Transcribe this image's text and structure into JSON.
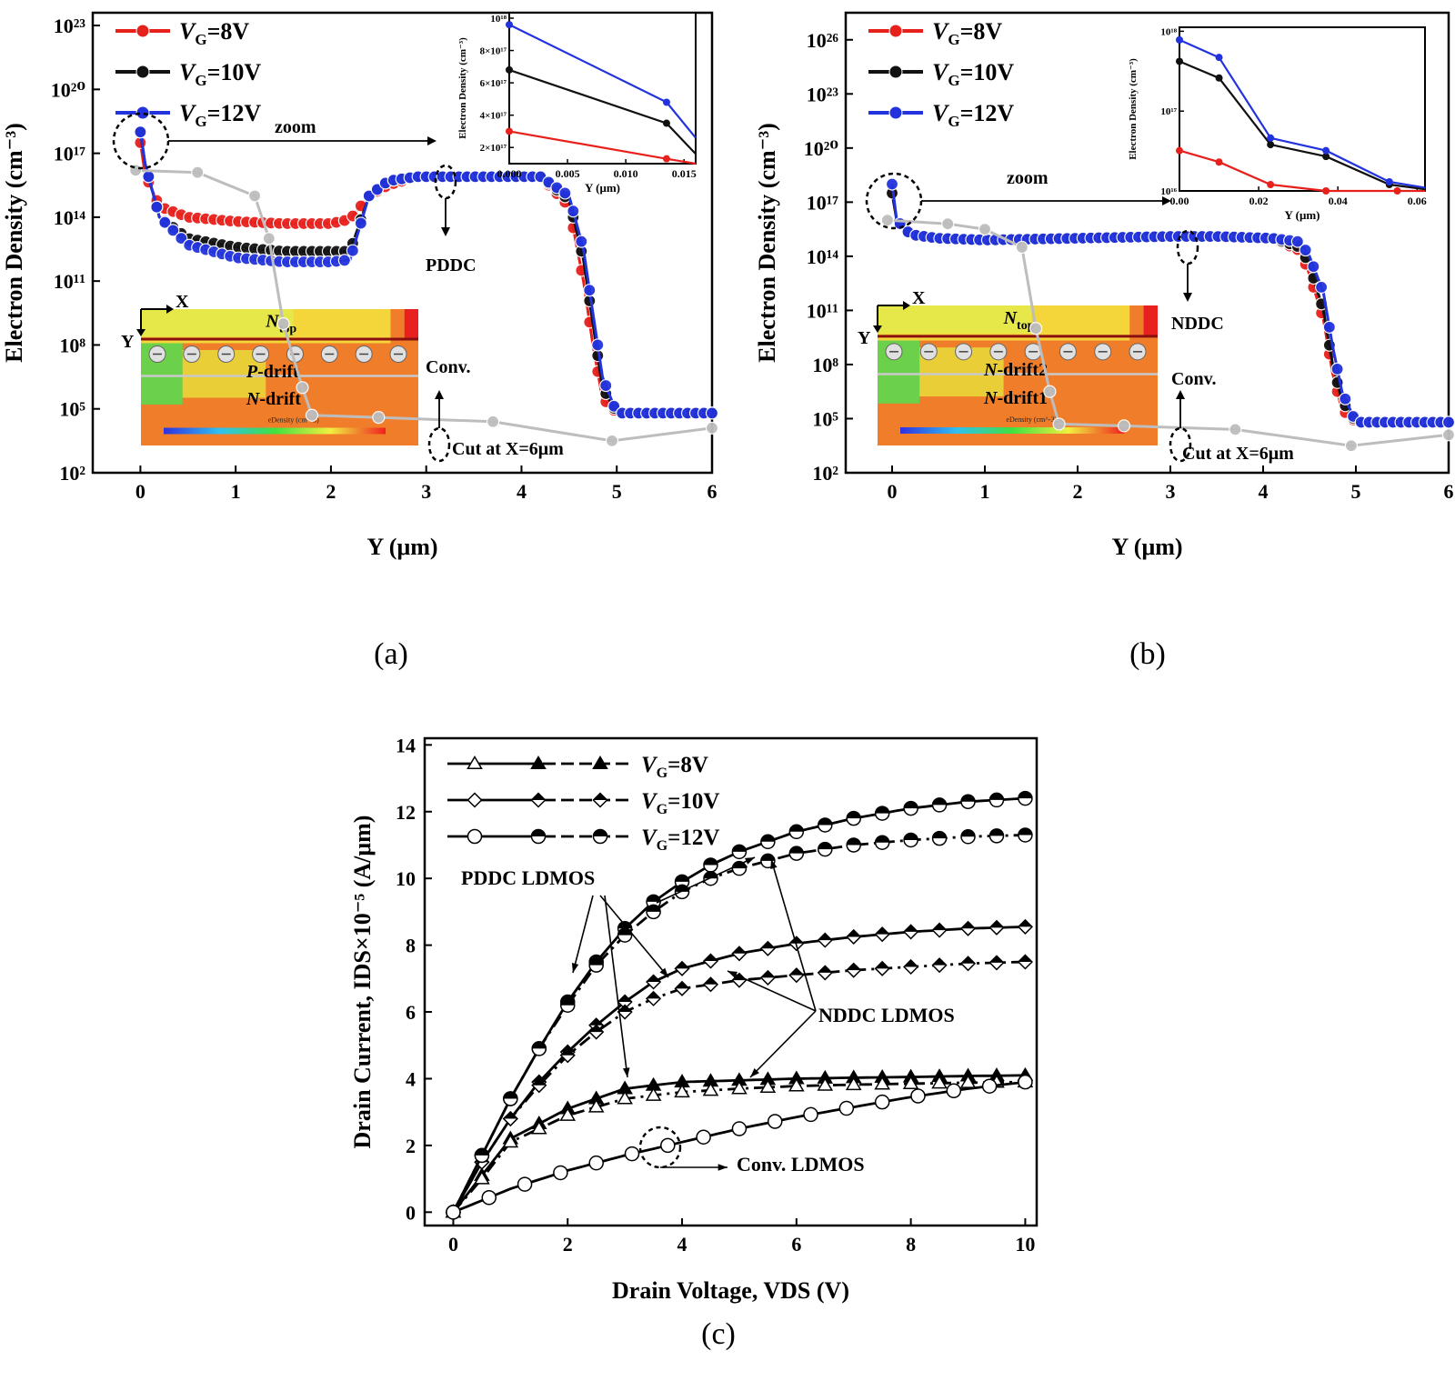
{
  "figure": {
    "panel_labels": {
      "a": "(a)",
      "b": "(b)",
      "c": "(c)"
    },
    "colors": {
      "vg8": "#e8201c",
      "vg10": "#111111",
      "vg12": "#2233dd",
      "conv": "#bdbdbd",
      "axis": "#000000"
    }
  },
  "chart_data": [
    {
      "panel": "(a)",
      "type": "line",
      "ylabel": "Electron Density (cm⁻³)",
      "xlabel": "Y (μm)",
      "xlim": [
        -0.5,
        6
      ],
      "ylim_log10": [
        2,
        23.6
      ],
      "y_scale": "log",
      "x_ticks": [
        "0",
        "1",
        "2",
        "3",
        "4",
        "5",
        "6"
      ],
      "y_ticks": [
        "10²",
        "10⁵",
        "10⁸",
        "10¹¹",
        "10¹⁴",
        "10¹⁷",
        "10²⁰",
        "10²³"
      ],
      "legend": [
        "VG=8V",
        "VG=10V",
        "VG=12V"
      ],
      "legend_position": "top-left",
      "series": [
        {
          "name": "VG=8V",
          "color": "#e8201c",
          "x": [
            0,
            0.05,
            0.2,
            0.5,
            1,
            1.5,
            2,
            2.2,
            2.4,
            2.6,
            2.9,
            3.5,
            4.2,
            4.5,
            4.65,
            4.75,
            4.85,
            5,
            5.5,
            6
          ],
          "log10_y": [
            17.5,
            16,
            14.5,
            14,
            13.8,
            13.7,
            13.7,
            13.9,
            15,
            15.5,
            15.9,
            15.9,
            15.9,
            14.5,
            11,
            8,
            5.5,
            4.8,
            4.8,
            4.8
          ]
        },
        {
          "name": "VG=10V",
          "color": "#111111",
          "x": [
            0,
            0.05,
            0.2,
            0.5,
            1,
            1.5,
            2,
            2.2,
            2.4,
            2.6,
            2.9,
            3.5,
            4.2,
            4.5,
            4.65,
            4.75,
            4.85,
            5,
            5.5,
            6
          ],
          "log10_y": [
            18,
            16.5,
            14,
            13,
            12.6,
            12.4,
            12.4,
            12.4,
            15,
            15.7,
            15.9,
            15.9,
            15.9,
            14.8,
            12,
            9,
            6,
            4.8,
            4.8,
            4.8
          ]
        },
        {
          "name": "VG=12V",
          "color": "#2233dd",
          "x": [
            0,
            0.05,
            0.2,
            0.5,
            1,
            1.5,
            2,
            2.2,
            2.4,
            2.6,
            2.9,
            3.5,
            4.2,
            4.5,
            4.65,
            4.75,
            4.85,
            5,
            5.5,
            6
          ],
          "log10_y": [
            18,
            16.5,
            14,
            12.7,
            12.1,
            11.9,
            11.9,
            12,
            15,
            15.7,
            15.9,
            15.9,
            15.9,
            15,
            12.5,
            9.5,
            6.5,
            4.8,
            4.8,
            4.8
          ]
        },
        {
          "name": "Conv.",
          "color": "#bdbdbd",
          "x": [
            -0.05,
            0.6,
            1.2,
            1.35,
            1.5,
            1.7,
            1.8,
            2.5,
            3.7,
            4.95,
            6
          ],
          "log10_y": [
            16.2,
            16.1,
            15,
            13,
            9,
            6,
            4.7,
            4.6,
            4.4,
            3.5,
            4.1
          ]
        }
      ],
      "annotations": [
        "zoom",
        "PDDC",
        "Conv.",
        "Cut at X=6μm"
      ],
      "inset": {
        "xlabel": "Y (μm)",
        "ylabel": "Electron Density (cm⁻³)",
        "xlim": [
          0,
          0.016
        ],
        "x_ticks": [
          "0.000",
          "0.005",
          "0.010",
          "0.015"
        ],
        "y_ticks": [
          "2×10¹⁷",
          "4×10¹⁷",
          "6×10¹⁷",
          "8×10¹⁷",
          "10¹⁸"
        ],
        "series": [
          {
            "name": "VG=8V",
            "x": [
              0,
              0.0135,
              0.016
            ],
            "y": [
              3e+17,
              1.3e+17,
              1e+17
            ]
          },
          {
            "name": "VG=10V",
            "x": [
              0,
              0.0135,
              0.016
            ],
            "y": [
              6.8e+17,
              3.5e+17,
              1.6e+17
            ]
          },
          {
            "name": "VG=12V",
            "x": [
              0,
              0.0135,
              0.016
            ],
            "y": [
              9.6e+17,
              4.8e+17,
              2.6e+17
            ]
          }
        ]
      },
      "structure_inset": {
        "labels": [
          "X",
          "Y",
          "N",
          "top",
          "P",
          "-drift",
          "N",
          "-drift",
          "eDensity (cm^-3)"
        ]
      }
    },
    {
      "panel": "(b)",
      "type": "line",
      "ylabel": "Electron Density (cm⁻³)",
      "xlabel": "Y (μm)",
      "xlim": [
        -0.5,
        6
      ],
      "ylim_log10": [
        2,
        27.5
      ],
      "y_scale": "log",
      "x_ticks": [
        "0",
        "1",
        "2",
        "3",
        "4",
        "5",
        "6"
      ],
      "y_ticks": [
        "10²",
        "10⁵",
        "10⁸",
        "10¹¹",
        "10¹⁴",
        "10¹⁷",
        "10²⁰",
        "10²³",
        "10²⁶"
      ],
      "legend": [
        "VG=8V",
        "VG=10V",
        "VG=12V"
      ],
      "legend_position": "top-left",
      "series": [
        {
          "name": "VG=8V",
          "color": "#e8201c",
          "x": [
            0,
            0.05,
            0.2,
            0.5,
            1,
            2,
            3,
            3.5,
            4.1,
            4.4,
            4.5,
            4.65,
            4.75,
            4.85,
            5,
            6
          ],
          "log10_y": [
            17.5,
            16,
            15.2,
            15,
            14.9,
            15,
            15.1,
            15.1,
            15,
            14.3,
            13,
            10.5,
            7.5,
            5.5,
            4.8,
            4.8
          ]
        },
        {
          "name": "VG=10V",
          "color": "#111111",
          "x": [
            0,
            0.05,
            0.2,
            0.5,
            1,
            2,
            3,
            3.5,
            4.1,
            4.4,
            4.5,
            4.65,
            4.75,
            4.85,
            5,
            6
          ],
          "log10_y": [
            17.5,
            16,
            15.2,
            15,
            14.9,
            15,
            15.1,
            15.1,
            15,
            14.5,
            13.5,
            11,
            8,
            6,
            4.8,
            4.8
          ]
        },
        {
          "name": "VG=12V",
          "color": "#2233dd",
          "x": [
            0,
            0.05,
            0.2,
            0.5,
            1,
            2,
            3,
            3.5,
            4.1,
            4.4,
            4.5,
            4.65,
            4.75,
            4.85,
            5,
            6
          ],
          "log10_y": [
            18,
            16,
            15.2,
            15,
            14.9,
            15,
            15.1,
            15.1,
            15,
            14.8,
            14,
            12,
            9,
            6.5,
            4.8,
            4.8
          ]
        },
        {
          "name": "Conv.",
          "color": "#bdbdbd",
          "x": [
            -0.05,
            0.6,
            1,
            1.4,
            1.55,
            1.7,
            1.8,
            2.5,
            3.7,
            4.95,
            6
          ],
          "log10_y": [
            16,
            15.8,
            15.5,
            14.5,
            10,
            6.5,
            4.7,
            4.6,
            4.4,
            3.5,
            4.1
          ]
        }
      ],
      "annotations": [
        "zoom",
        "NDDC",
        "Conv.",
        "Cut at X=6μm"
      ],
      "inset": {
        "xlabel": "Y (μm)",
        "ylabel": "Electron Density (cm⁻³)",
        "xlim": [
          0,
          0.062
        ],
        "x_ticks": [
          "0.00",
          "0.02",
          "0.04",
          "0.06"
        ],
        "y_ticks": [
          "10¹⁶",
          "10¹⁷",
          "10¹⁸"
        ],
        "series": [
          {
            "name": "VG=8V",
            "x": [
              0,
              0.01,
              0.023,
              0.037,
              0.055,
              0.062
            ],
            "y": [
              3.2e+16,
              2.3e+16,
              1.2e+16,
              1e+16,
              1e+16,
              1e+16
            ]
          },
          {
            "name": "VG=10V",
            "x": [
              0,
              0.01,
              0.023,
              0.037,
              0.053,
              0.062
            ],
            "y": [
              4.2e+17,
              2.6e+17,
              3.8e+16,
              2.7e+16,
              1.2e+16,
              1.05e+16
            ]
          },
          {
            "name": "VG=12V",
            "x": [
              0,
              0.01,
              0.023,
              0.037,
              0.053,
              0.062
            ],
            "y": [
              7.8e+17,
              4.7e+17,
              4.6e+16,
              3.2e+16,
              1.3e+16,
              1.1e+16
            ]
          }
        ]
      },
      "structure_inset": {
        "labels": [
          "X",
          "Y",
          "N",
          "top",
          "N",
          "-drift2",
          "N",
          "-drift1",
          "eDensity (cm^-3)"
        ]
      }
    },
    {
      "panel": "(c)",
      "type": "line",
      "xlabel": "Drain Voltage, VDS (V)",
      "ylabel": "Drain Current, IDS×10⁻⁵ (A/μm)",
      "xlim": [
        -0.5,
        10.2
      ],
      "ylim": [
        -0.4,
        14.2
      ],
      "x_ticks": [
        "0",
        "2",
        "4",
        "6",
        "8",
        "10"
      ],
      "y_ticks": [
        "0",
        "2",
        "4",
        "6",
        "8",
        "10",
        "12",
        "14"
      ],
      "legend": [
        "VG=8V",
        "VG=10V",
        "VG=12V"
      ],
      "legend_position": "top-left",
      "series": [
        {
          "name": "VG=8V",
          "group": "PDDC",
          "marker": "filled-triangle",
          "x": [
            0,
            0.5,
            1,
            2,
            3,
            4,
            5,
            6,
            7,
            8,
            9,
            10
          ],
          "y": [
            0,
            1.1,
            2.2,
            3.1,
            3.7,
            3.9,
            3.95,
            4,
            4.03,
            4.05,
            4.08,
            4.1
          ]
        },
        {
          "name": "VG=8V",
          "group": "NDDC",
          "marker": "open-triangle",
          "x": [
            0,
            0.5,
            1,
            2,
            3,
            4,
            5,
            6,
            7,
            8,
            9,
            10
          ],
          "y": [
            0,
            1,
            2.1,
            2.9,
            3.4,
            3.6,
            3.7,
            3.78,
            3.82,
            3.85,
            3.88,
            3.9
          ]
        },
        {
          "name": "VG=10V",
          "group": "PDDC",
          "marker": "filled-diamond",
          "x": [
            0,
            0.5,
            1,
            1.5,
            2,
            2.5,
            3,
            3.5,
            4,
            5,
            6,
            7,
            8,
            9,
            10
          ],
          "y": [
            0,
            1.5,
            2.8,
            3.9,
            4.8,
            5.6,
            6.3,
            6.9,
            7.3,
            7.75,
            8.05,
            8.25,
            8.4,
            8.5,
            8.55
          ]
        },
        {
          "name": "VG=10V",
          "group": "NDDC",
          "marker": "half-diamond",
          "x": [
            0,
            0.5,
            1,
            1.5,
            2,
            2.5,
            3,
            3.5,
            4,
            5,
            6,
            7,
            8,
            9,
            10
          ],
          "y": [
            0,
            1.5,
            2.8,
            3.8,
            4.7,
            5.4,
            6,
            6.4,
            6.7,
            6.95,
            7.1,
            7.25,
            7.35,
            7.45,
            7.5
          ]
        },
        {
          "name": "VG=12V",
          "group": "PDDC",
          "marker": "filled-circle",
          "x": [
            0,
            0.5,
            1,
            1.5,
            2,
            2.5,
            3,
            3.5,
            4,
            4.5,
            5,
            6,
            7,
            8,
            9,
            10
          ],
          "y": [
            0,
            1.7,
            3.4,
            4.9,
            6.3,
            7.5,
            8.5,
            9.3,
            9.9,
            10.4,
            10.8,
            11.4,
            11.8,
            12.1,
            12.3,
            12.4
          ]
        },
        {
          "name": "VG=12V",
          "group": "NDDC",
          "marker": "half-circle",
          "x": [
            0,
            0.5,
            1,
            1.5,
            2,
            2.5,
            3,
            3.5,
            4,
            4.5,
            5,
            6,
            7,
            8,
            9,
            10
          ],
          "y": [
            0,
            1.7,
            3.4,
            4.9,
            6.2,
            7.4,
            8.3,
            9,
            9.6,
            10,
            10.3,
            10.75,
            11,
            11.15,
            11.25,
            11.3
          ]
        },
        {
          "name": "Conv. LDMOS",
          "group": "Conv",
          "marker": "open-circle",
          "x": [
            0,
            1,
            2,
            3,
            4,
            5,
            6,
            7,
            8,
            9,
            10
          ],
          "y": [
            0,
            0.7,
            1.25,
            1.7,
            2.1,
            2.5,
            2.85,
            3.15,
            3.45,
            3.7,
            3.9
          ]
        }
      ],
      "annotations": [
        "PDDC LDMOS",
        "NDDC LDMOS",
        "Conv. LDMOS"
      ]
    }
  ]
}
